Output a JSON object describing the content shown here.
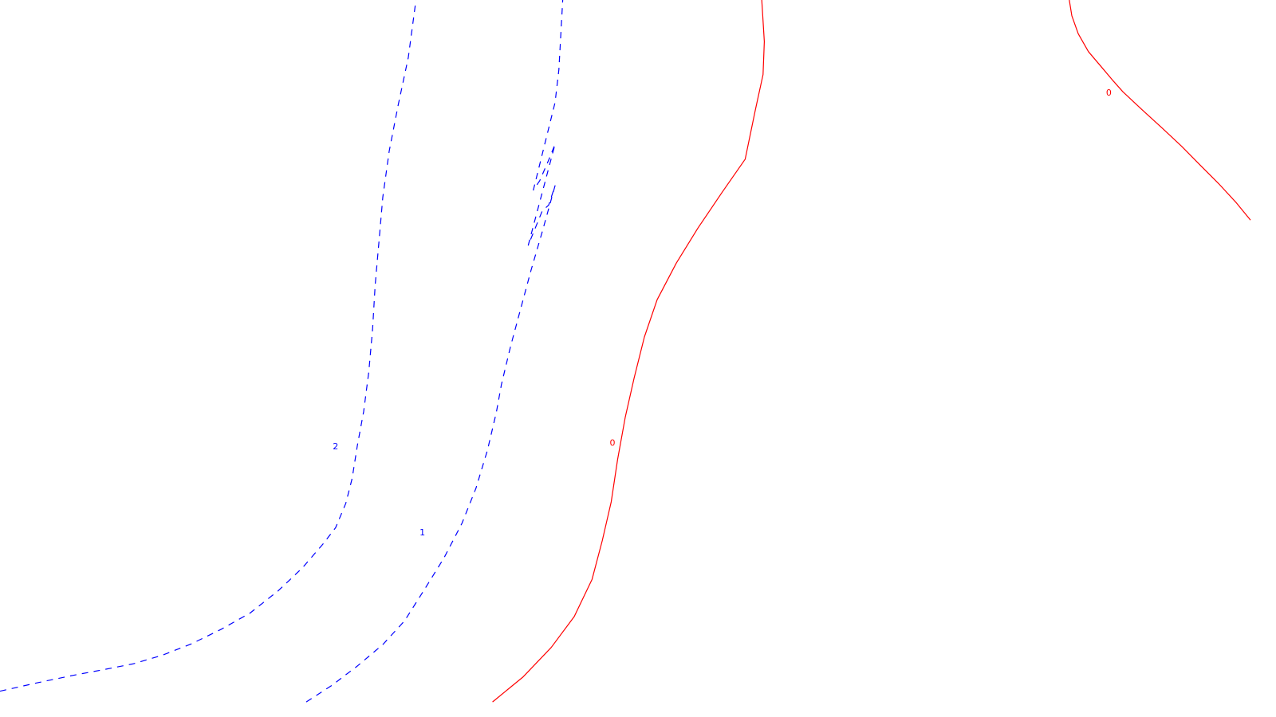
{
  "chart_data": {
    "type": "contour",
    "title": "",
    "xlabel": "",
    "ylabel": "",
    "grid": false,
    "legend": "none",
    "colors": {
      "negative": "#0000ff",
      "zero": "#ff0000"
    },
    "contours": [
      {
        "level": "2",
        "color": "#0000ff",
        "style": "dashed",
        "points": [
          [
            0.0,
            0.964
          ],
          [
            0.03,
            0.952
          ],
          [
            0.057,
            0.942
          ],
          [
            0.081,
            0.934
          ],
          [
            0.104,
            0.926
          ],
          [
            0.127,
            0.914
          ],
          [
            0.15,
            0.898
          ],
          [
            0.173,
            0.878
          ],
          [
            0.196,
            0.855
          ],
          [
            0.218,
            0.824
          ],
          [
            0.237,
            0.792
          ],
          [
            0.253,
            0.759
          ],
          [
            0.263,
            0.736
          ],
          [
            0.271,
            0.702
          ],
          [
            0.276,
            0.667
          ],
          [
            0.28,
            0.622
          ],
          [
            0.285,
            0.574
          ],
          [
            0.289,
            0.519
          ],
          [
            0.292,
            0.459
          ],
          [
            0.294,
            0.398
          ],
          [
            0.297,
            0.337
          ],
          [
            0.3,
            0.275
          ],
          [
            0.305,
            0.211
          ],
          [
            0.312,
            0.147
          ],
          [
            0.32,
            0.08
          ],
          [
            0.326,
            0.0
          ]
        ],
        "labels": [
          {
            "text": "2",
            "x": 0.263,
            "y": 0.622
          }
        ]
      },
      {
        "level": "1",
        "color": "#0000ff",
        "style": "dashed",
        "points": [
          [
            0.24,
            0.979
          ],
          [
            0.26,
            0.956
          ],
          [
            0.28,
            0.929
          ],
          [
            0.3,
            0.899
          ],
          [
            0.317,
            0.866
          ],
          [
            0.332,
            0.824
          ],
          [
            0.348,
            0.778
          ],
          [
            0.362,
            0.73
          ],
          [
            0.373,
            0.681
          ],
          [
            0.382,
            0.628
          ],
          [
            0.389,
            0.575
          ],
          [
            0.393,
            0.536
          ],
          [
            0.4,
            0.484
          ],
          [
            0.408,
            0.431
          ],
          [
            0.416,
            0.378
          ],
          [
            0.425,
            0.323
          ],
          [
            0.435,
            0.259
          ],
          [
            0.43,
            0.286
          ],
          [
            0.425,
            0.294
          ],
          [
            0.414,
            0.342
          ],
          [
            0.435,
            0.201
          ],
          [
            0.431,
            0.219
          ],
          [
            0.423,
            0.252
          ],
          [
            0.418,
            0.265
          ],
          [
            0.435,
            0.143
          ],
          [
            0.438,
            0.097
          ],
          [
            0.441,
            0.0
          ]
        ],
        "labels": [
          {
            "text": "1",
            "x": 0.331,
            "y": 0.742
          }
        ]
      },
      {
        "level": "0",
        "color": "#ff0000",
        "style": "solid",
        "points": [
          [
            0.386,
            0.979
          ],
          [
            0.41,
            0.944
          ],
          [
            0.432,
            0.903
          ],
          [
            0.45,
            0.86
          ],
          [
            0.464,
            0.808
          ],
          [
            0.472,
            0.754
          ],
          [
            0.479,
            0.7
          ],
          [
            0.484,
            0.641
          ],
          [
            0.49,
            0.582
          ],
          [
            0.497,
            0.527
          ],
          [
            0.505,
            0.47
          ],
          [
            0.515,
            0.418
          ],
          [
            0.53,
            0.367
          ],
          [
            0.547,
            0.318
          ],
          [
            0.566,
            0.268
          ],
          [
            0.584,
            0.222
          ],
          [
            0.592,
            0.153
          ],
          [
            0.598,
            0.104
          ],
          [
            0.599,
            0.058
          ],
          [
            0.597,
            0.0
          ]
        ],
        "labels": [
          {
            "text": "0",
            "x": 0.48,
            "y": 0.617
          }
        ]
      },
      {
        "level": "0",
        "color": "#ff0000",
        "style": "solid",
        "points": [
          [
            0.838,
            0.0
          ],
          [
            0.84,
            0.022
          ],
          [
            0.845,
            0.047
          ],
          [
            0.853,
            0.072
          ],
          [
            0.863,
            0.093
          ],
          [
            0.872,
            0.112
          ],
          [
            0.88,
            0.128
          ],
          [
            0.895,
            0.153
          ],
          [
            0.911,
            0.179
          ],
          [
            0.926,
            0.204
          ],
          [
            0.941,
            0.231
          ],
          [
            0.955,
            0.256
          ],
          [
            0.969,
            0.283
          ],
          [
            0.98,
            0.307
          ]
        ],
        "labels": [
          {
            "text": "0",
            "x": 0.869,
            "y": 0.129
          }
        ]
      }
    ]
  }
}
